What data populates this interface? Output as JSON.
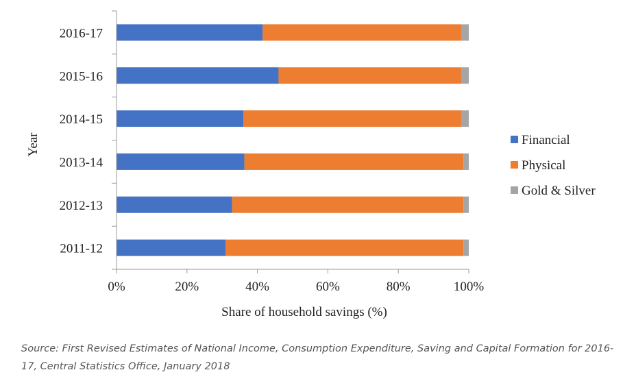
{
  "chart_data": {
    "type": "bar",
    "orientation": "horizontal",
    "stacked": "percent",
    "categories": [
      "2016-17",
      "2015-16",
      "2014-15",
      "2013-14",
      "2012-13",
      "2011-12"
    ],
    "series": [
      {
        "name": "Financial",
        "color": "#4472C4",
        "values": [
          41.5,
          46.0,
          36.0,
          36.3,
          32.8,
          31.0
        ]
      },
      {
        "name": "Physical",
        "color": "#ED7D31",
        "values": [
          56.5,
          52.0,
          62.0,
          62.2,
          65.7,
          67.5
        ]
      },
      {
        "name": "Gold & Silver",
        "color": "#A5A5A5",
        "values": [
          2.0,
          2.0,
          2.0,
          1.5,
          1.5,
          1.5
        ]
      }
    ],
    "xlim": [
      0,
      100
    ],
    "xticks": [
      "0%",
      "20%",
      "40%",
      "60%",
      "80%",
      "100%"
    ],
    "xlabel": "Share of household savings (%)",
    "ylabel": "Year",
    "legend_position": "right",
    "grid": false
  },
  "source_text": "Source: First Revised Estimates of National Income, Consumption Expenditure, Saving and Capital Formation for 2016-17, Central Statistics Office, January 2018"
}
